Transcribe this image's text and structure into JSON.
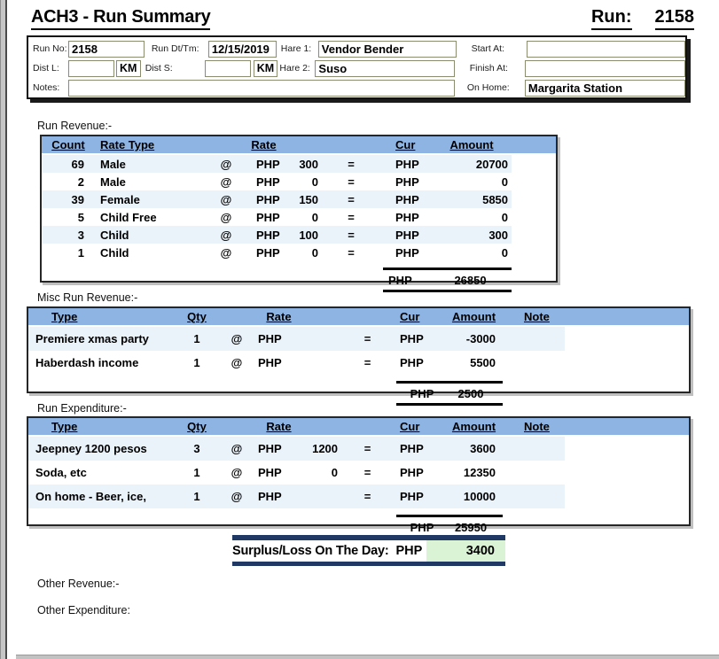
{
  "page": {
    "title": "ACH3 - Run Summary",
    "run_label": "Run:",
    "run_number": "2158"
  },
  "run_info": {
    "run_no": {
      "label": "Run No:",
      "value": "2158"
    },
    "run_dt": {
      "label": "Run Dt/Tm:",
      "value": "12/15/2019"
    },
    "hare1": {
      "label": "Hare 1:",
      "value": "Vendor Bender"
    },
    "start_at": {
      "label": "Start At:",
      "value": ""
    },
    "dist_l": {
      "label": "Dist L:",
      "value": "",
      "unit": "KM"
    },
    "dist_s": {
      "label": "Dist S:",
      "value": "",
      "unit": "KM"
    },
    "hare2": {
      "label": "Hare 2:",
      "value": "Suso"
    },
    "finish_at": {
      "label": "Finish At:",
      "value": ""
    },
    "notes": {
      "label": "Notes:",
      "value": ""
    },
    "on_home": {
      "label": "On Home:",
      "value": "Margarita Station"
    }
  },
  "run_revenue": {
    "section_label": "Run Revenue:-",
    "headers": {
      "count": "Count",
      "rate_type": "Rate Type",
      "rate": "Rate",
      "cur": "Cur",
      "amount": "Amount"
    },
    "rows": [
      [
        "69",
        "Male",
        "@",
        "PHP",
        "300",
        "=",
        "PHP",
        "20700"
      ],
      [
        "2",
        "Male",
        "@",
        "PHP",
        "0",
        "=",
        "PHP",
        "0"
      ],
      [
        "39",
        "Female",
        "@",
        "PHP",
        "150",
        "=",
        "PHP",
        "5850"
      ],
      [
        "5",
        "Child Free",
        "@",
        "PHP",
        "0",
        "=",
        "PHP",
        "0"
      ],
      [
        "3",
        "Child",
        "@",
        "PHP",
        "100",
        "=",
        "PHP",
        "300"
      ],
      [
        "1",
        "Child",
        "@",
        "PHP",
        "0",
        "=",
        "PHP",
        "0"
      ]
    ],
    "total": {
      "cur": "PHP",
      "amount": "26850"
    }
  },
  "misc_revenue": {
    "section_label": "Misc Run Revenue:-",
    "headers": {
      "type": "Type",
      "qty": "Qty",
      "rate": "Rate",
      "cur": "Cur",
      "amount": "Amount",
      "note": "Note"
    },
    "rows": [
      [
        "Premiere xmas party",
        "1",
        "@",
        "PHP",
        "",
        "=",
        "PHP",
        "-3000",
        ""
      ],
      [
        "Haberdash income",
        "1",
        "@",
        "PHP",
        "",
        "=",
        "PHP",
        "5500",
        ""
      ]
    ],
    "total": {
      "cur": "PHP",
      "amount": "2500"
    }
  },
  "run_expenditure": {
    "section_label": "Run Expenditure:-",
    "headers": {
      "type": "Type",
      "qty": "Qty",
      "rate": "Rate",
      "cur": "Cur",
      "amount": "Amount",
      "note": "Note"
    },
    "rows": [
      [
        "Jeepney 1200 pesos",
        "3",
        "@",
        "PHP",
        "1200",
        "=",
        "PHP",
        "3600",
        ""
      ],
      [
        "Soda, etc",
        "1",
        "@",
        "PHP",
        "0",
        "=",
        "PHP",
        "12350",
        ""
      ],
      [
        "On home - Beer, ice,",
        "1",
        "@",
        "PHP",
        "",
        "=",
        "PHP",
        "10000",
        ""
      ]
    ],
    "total": {
      "cur": "PHP",
      "amount": "25950"
    }
  },
  "surplus": {
    "label": "Surplus/Loss On The Day:",
    "cur": "PHP",
    "amount": "3400"
  },
  "other_revenue_label": "Other Revenue:-",
  "other_expenditure_label": "Other Expenditure:",
  "colors": {
    "table_header_blue": "#8EB4E3",
    "row_alt_blue": "#EAF2FA",
    "surplus_navy": "#1F3864",
    "surplus_green": "#DBF3D5"
  }
}
